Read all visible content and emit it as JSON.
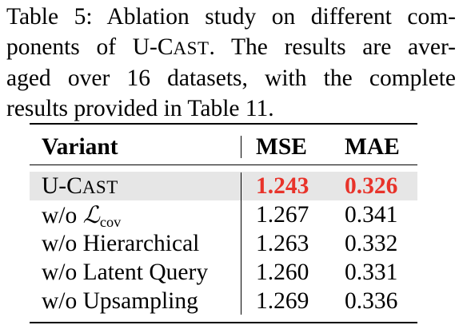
{
  "caption": {
    "lines": [
      "Table 5: Ablation study on different com-",
      "ponents of U-CAST. The results are aver-",
      "aged over 16 datasets, with the complete",
      "results provided in Table 11."
    ]
  },
  "table": {
    "headers": [
      "Variant",
      "MSE",
      "MAE"
    ],
    "rows": [
      {
        "variant": "U-CAST",
        "mse": "1.243",
        "mae": "0.326",
        "highlight": true
      },
      {
        "variant": "w/o ℒcov",
        "mse": "1.267",
        "mae": "0.341",
        "highlight": false
      },
      {
        "variant": "w/o Hierarchical",
        "mse": "1.263",
        "mae": "0.332",
        "highlight": false
      },
      {
        "variant": "w/o Latent Query",
        "mse": "1.260",
        "mae": "0.331",
        "highlight": false
      },
      {
        "variant": "w/o Upsampling",
        "mse": "1.269",
        "mae": "0.336",
        "highlight": false
      }
    ],
    "best_color": "#e8332a",
    "highlight_color": "#e6e6e6"
  }
}
